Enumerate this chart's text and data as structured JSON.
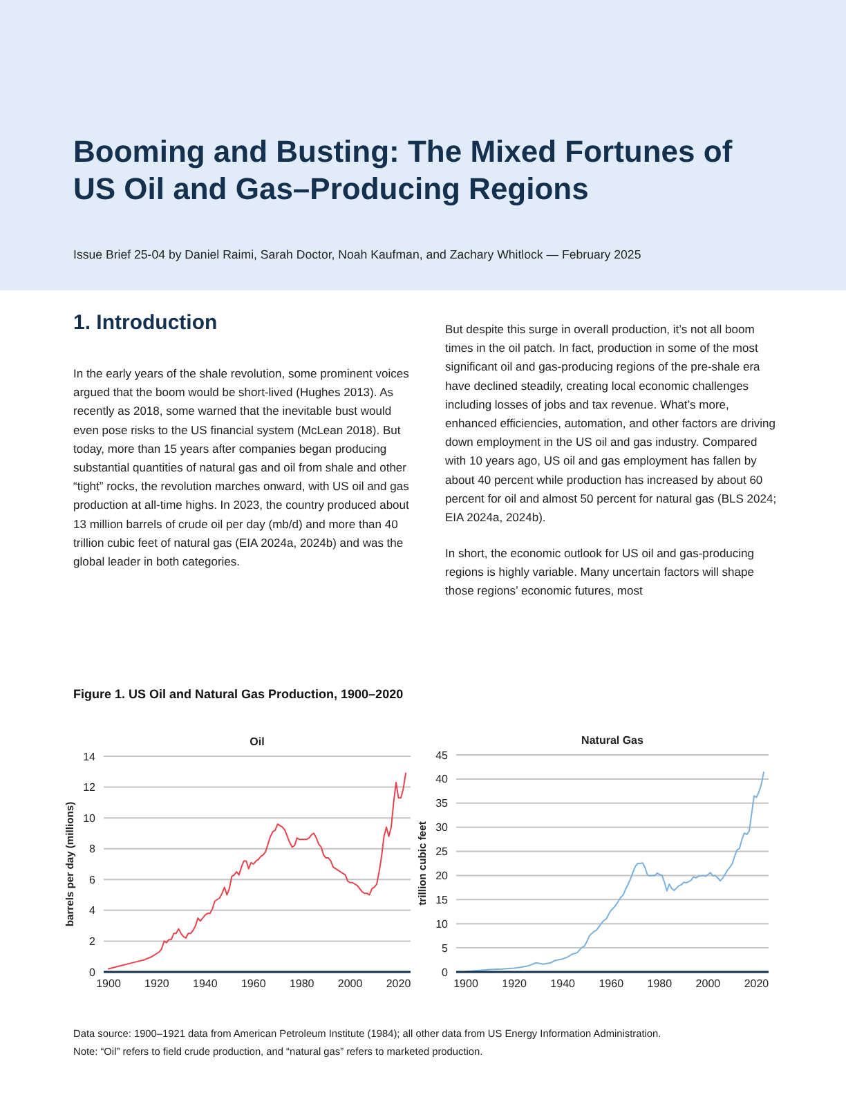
{
  "chart_data": [
    {
      "type": "other",
      "title": "Booming and Busting: The Mixed Fortunes of US Oil and Gas–Producing Regions",
      "subtitle": "Issue Brief 25-04 by Daniel Raimi, Sarah Doctor, Noah Kaufman, and Zachary Whitlock — February 2025",
      "annotations": [
        "1.  Introduction",
        "In the early years of the shale revolution, some prominent voices argued that the boom would be short-lived (Hughes 2013). As recently as 2018, some warned that the inevitable bust would even pose risks to the US financial system (McLean 2018). But today, more than 15 years after companies began producing substantial quantities of natural gas and oil from shale and other “tight” rocks, the revolution marches onward, with US oil and gas production at all-time highs. In 2023, the country produced about 13 million barrels of crude oil per day (mb/d) and more than 40 trillion cubic feet of natural gas (EIA 2024a, 2024b) and was the global leader in both categories.",
        "But despite this surge in overall production, it’s not all boom times in the oil patch. In fact, production in some of the most significant oil and gas-producing regions of the pre-shale era have declined steadily, creating local economic challenges including losses of jobs and tax revenue. What’s more, enhanced efficiencies, automation, and other factors are driving down employment in the US oil and gas industry. Compared with 10 years ago, US oil and gas employment has fallen by about 40 percent while production has increased by about 60 percent for oil and almost 50 percent for natural gas (BLS 2024; EIA 2024a, 2024b).",
        "In short, the economic outlook for US oil and gas-producing regions is highly variable. Many uncertain factors will shape those regions’ economic futures,  most",
        "Figure 1. US Oil and Natural Gas Production, 1900–2020"
      ]
    },
    {
      "type": "line",
      "title": "Oil",
      "ylabel": "barrels per day (millions)",
      "xlim": [
        1898,
        2025
      ],
      "xticks": [
        1900,
        1920,
        1940,
        1960,
        1980,
        2000,
        2020
      ],
      "ylim": [
        0,
        14
      ],
      "yticks": [
        0,
        2,
        4,
        6,
        8,
        10,
        12,
        14
      ],
      "grid": "y",
      "x": [
        1900,
        1905,
        1910,
        1915,
        1918,
        1920,
        1921,
        1922,
        1923,
        1924,
        1925,
        1926,
        1927,
        1928,
        1929,
        1930,
        1931,
        1932,
        1933,
        1934,
        1935,
        1936,
        1937,
        1938,
        1939,
        1940,
        1941,
        1942,
        1943,
        1944,
        1945,
        1946,
        1947,
        1948,
        1949,
        1950,
        1951,
        1952,
        1953,
        1954,
        1955,
        1956,
        1957,
        1958,
        1959,
        1960,
        1961,
        1962,
        1963,
        1964,
        1965,
        1966,
        1967,
        1968,
        1969,
        1970,
        1971,
        1972,
        1973,
        1974,
        1975,
        1976,
        1977,
        1978,
        1979,
        1980,
        1981,
        1982,
        1983,
        1984,
        1985,
        1986,
        1987,
        1988,
        1989,
        1990,
        1991,
        1992,
        1993,
        1994,
        1995,
        1996,
        1997,
        1998,
        1999,
        2000,
        2001,
        2002,
        2003,
        2004,
        2005,
        2006,
        2007,
        2008,
        2009,
        2010,
        2011,
        2012,
        2013,
        2014,
        2015,
        2016,
        2017,
        2018,
        2019,
        2020,
        2021,
        2022,
        2023
      ],
      "series": [
        {
          "color": "#e5444e",
          "values": [
            0.2,
            0.4,
            0.6,
            0.8,
            1.0,
            1.2,
            1.3,
            1.5,
            2.0,
            1.9,
            2.1,
            2.1,
            2.5,
            2.5,
            2.8,
            2.5,
            2.3,
            2.2,
            2.5,
            2.5,
            2.7,
            3.0,
            3.5,
            3.3,
            3.5,
            3.7,
            3.8,
            3.8,
            4.1,
            4.6,
            4.7,
            4.8,
            5.1,
            5.5,
            5.0,
            5.4,
            6.2,
            6.3,
            6.5,
            6.3,
            6.8,
            7.2,
            7.2,
            6.7,
            7.1,
            7.0,
            7.2,
            7.3,
            7.5,
            7.6,
            7.8,
            8.3,
            8.8,
            9.1,
            9.2,
            9.6,
            9.5,
            9.4,
            9.2,
            8.8,
            8.4,
            8.1,
            8.2,
            8.7,
            8.6,
            8.6,
            8.6,
            8.6,
            8.7,
            8.9,
            9.0,
            8.7,
            8.3,
            8.1,
            7.6,
            7.4,
            7.4,
            7.2,
            6.8,
            6.7,
            6.6,
            6.5,
            6.4,
            6.3,
            5.9,
            5.8,
            5.8,
            5.7,
            5.6,
            5.4,
            5.2,
            5.1,
            5.1,
            5.0,
            5.4,
            5.5,
            5.7,
            6.5,
            7.5,
            8.8,
            9.4,
            8.8,
            9.4,
            11.0,
            12.3,
            11.3,
            11.3,
            11.9,
            12.9
          ]
        }
      ]
    },
    {
      "type": "line",
      "title": "Natural Gas",
      "ylabel": "trillion cubic feet",
      "xlim": [
        1896,
        2025
      ],
      "xticks": [
        1900,
        1920,
        1940,
        1960,
        1980,
        2000,
        2020
      ],
      "ylim": [
        0,
        45
      ],
      "yticks": [
        0,
        5,
        10,
        15,
        20,
        25,
        30,
        35,
        40,
        45
      ],
      "grid": "y",
      "x": [
        1900,
        1905,
        1910,
        1915,
        1920,
        1923,
        1926,
        1929,
        1932,
        1935,
        1937,
        1940,
        1942,
        1944,
        1946,
        1947,
        1948,
        1949,
        1950,
        1951,
        1952,
        1953,
        1954,
        1955,
        1956,
        1957,
        1958,
        1959,
        1960,
        1961,
        1962,
        1963,
        1964,
        1965,
        1966,
        1967,
        1968,
        1969,
        1970,
        1971,
        1972,
        1973,
        1974,
        1975,
        1976,
        1977,
        1978,
        1979,
        1980,
        1981,
        1982,
        1983,
        1984,
        1985,
        1986,
        1987,
        1988,
        1989,
        1990,
        1991,
        1992,
        1993,
        1994,
        1995,
        1996,
        1997,
        1998,
        1999,
        2000,
        2001,
        2002,
        2003,
        2004,
        2005,
        2006,
        2007,
        2008,
        2009,
        2010,
        2011,
        2012,
        2013,
        2014,
        2015,
        2016,
        2017,
        2018,
        2019,
        2020,
        2021,
        2022,
        2023
      ],
      "series": [
        {
          "color": "#7db1dc",
          "values": [
            0.1,
            0.3,
            0.5,
            0.6,
            0.8,
            1.0,
            1.3,
            1.9,
            1.6,
            1.9,
            2.4,
            2.7,
            3.1,
            3.7,
            4.0,
            4.6,
            5.1,
            5.4,
            6.3,
            7.5,
            8.0,
            8.4,
            8.7,
            9.4,
            10.1,
            10.7,
            11.0,
            12.0,
            12.8,
            13.3,
            13.9,
            14.7,
            15.5,
            16.0,
            17.2,
            18.2,
            19.3,
            20.7,
            21.9,
            22.5,
            22.5,
            22.6,
            21.6,
            20.1,
            19.9,
            20.0,
            20.0,
            20.5,
            20.2,
            20.0,
            18.6,
            16.8,
            18.2,
            17.3,
            16.9,
            17.4,
            17.9,
            18.1,
            18.6,
            18.5,
            18.7,
            19.0,
            19.7,
            19.5,
            19.8,
            19.9,
            20.0,
            19.8,
            20.2,
            20.6,
            19.9,
            20.0,
            19.5,
            18.9,
            19.4,
            20.2,
            21.1,
            21.7,
            22.4,
            24.0,
            25.3,
            25.6,
            27.5,
            28.8,
            28.5,
            29.2,
            32.8,
            36.5,
            36.2,
            37.3,
            38.9,
            41.4
          ]
        }
      ]
    },
    {
      "type": "other",
      "annotations": [
        "Data source: 1900–1921 data from American Petroleum Institute (1984); all other data from US Energy Information Administration.",
        "Note: “Oil” refers to field crude production, and “natural gas” refers to marketed production."
      ]
    }
  ]
}
